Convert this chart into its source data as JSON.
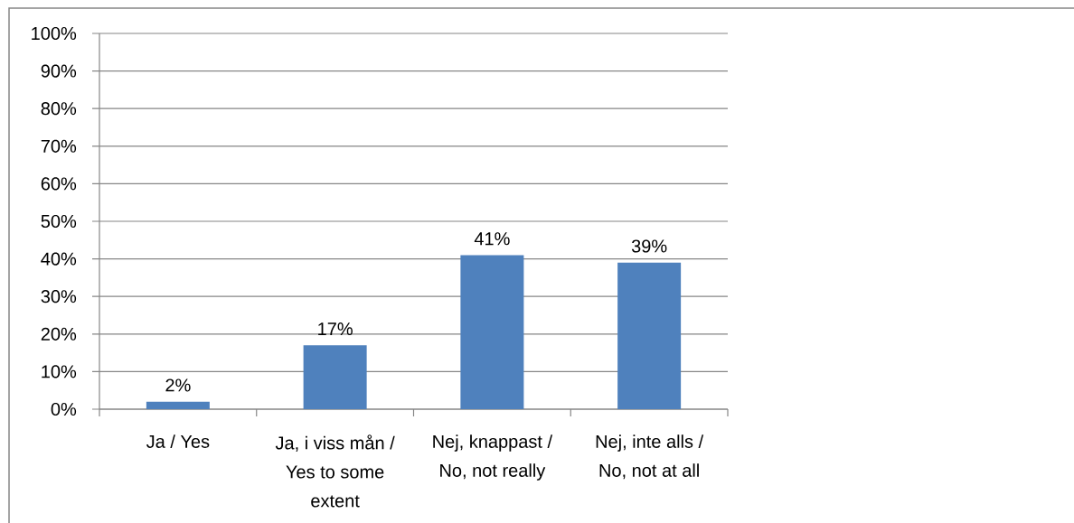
{
  "chart_data": {
    "type": "bar",
    "categories": [
      "Ja / Yes",
      "Ja, i viss mån / Yes to some extent",
      "Nej, knappast / No, not really",
      "Nej, inte alls / No, not at all"
    ],
    "values": [
      2,
      17,
      41,
      39
    ],
    "value_labels": [
      "2%",
      "17%",
      "41%",
      "39%"
    ],
    "color": "#4f81bd",
    "ylim": [
      0,
      100
    ],
    "yticks": [
      {
        "value": 0,
        "label": "0%"
      },
      {
        "value": 10,
        "label": "10%"
      },
      {
        "value": 20,
        "label": "20%"
      },
      {
        "value": 30,
        "label": "30%"
      },
      {
        "value": 40,
        "label": "40%"
      },
      {
        "value": 50,
        "label": "50%"
      },
      {
        "value": 60,
        "label": "60%"
      },
      {
        "value": 70,
        "label": "70%"
      },
      {
        "value": 80,
        "label": "80%"
      },
      {
        "value": 90,
        "label": "90%"
      },
      {
        "value": 100,
        "label": "100%"
      }
    ],
    "grid": "y"
  }
}
